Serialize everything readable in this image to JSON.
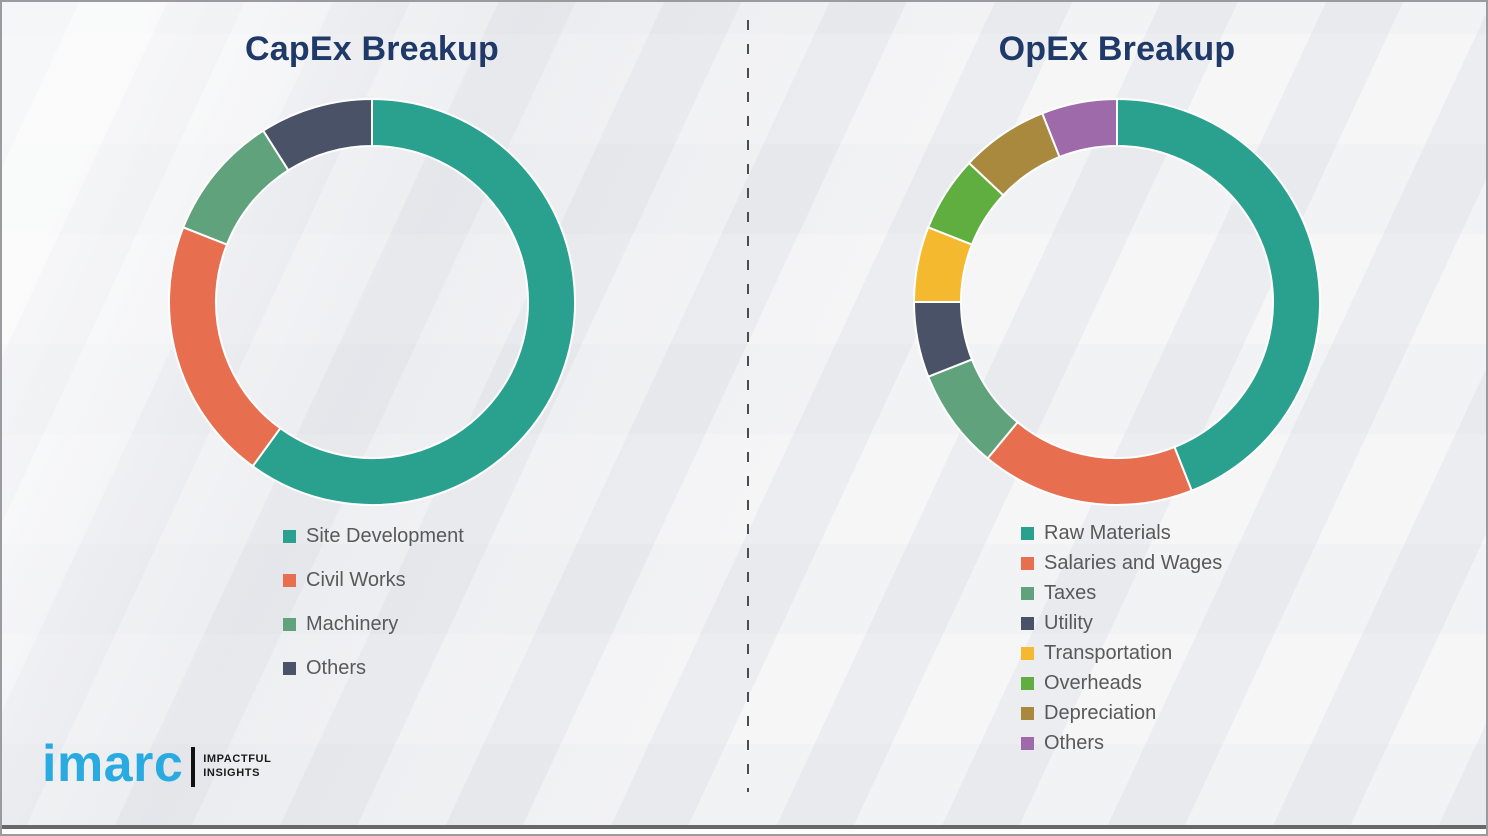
{
  "slide": {
    "background_color": "#f0f0f2",
    "border_color": "#9b9b9f",
    "bottom_bar_color": "#686868",
    "title_color": "#1f3a68",
    "legend_text_color": "#595959",
    "divider_color": "#4d4d4d"
  },
  "logo": {
    "brand": "imarc",
    "brand_color": "#29abe2",
    "tagline_line1": "IMPACTFUL",
    "tagline_line2": "INSIGHTS",
    "tagline_color": "#1a1a1a"
  },
  "chart_data": [
    {
      "type": "pie",
      "subtype": "donut",
      "title": "CapEx Breakup",
      "labels": [
        "Site Development",
        "Civil Works",
        "Machinery",
        "Others"
      ],
      "values": [
        60,
        21,
        10,
        9
      ],
      "colors": [
        "#2aa08f",
        "#e76e4e",
        "#5fa27c",
        "#4a5268"
      ],
      "units": "%",
      "value_labels_shown": false,
      "values_estimated_from_arc_angles": true,
      "start_angle_deg": 0,
      "direction": "clockwise",
      "legend_position": "below"
    },
    {
      "type": "pie",
      "subtype": "donut",
      "title": "OpEx Breakup",
      "labels": [
        "Raw Materials",
        "Salaries and Wages",
        "Taxes",
        "Utility",
        "Transportation",
        "Overheads",
        "Depreciation",
        "Others"
      ],
      "values": [
        44,
        17,
        8,
        6,
        6,
        6,
        7,
        6
      ],
      "colors": [
        "#2aa08f",
        "#e76e4e",
        "#5fa27c",
        "#4a5268",
        "#f5b92f",
        "#61ae40",
        "#a8893d",
        "#9f6aa9"
      ],
      "units": "%",
      "value_labels_shown": false,
      "values_estimated_from_arc_angles": true,
      "start_angle_deg": 0,
      "direction": "clockwise",
      "legend_position": "below"
    }
  ]
}
